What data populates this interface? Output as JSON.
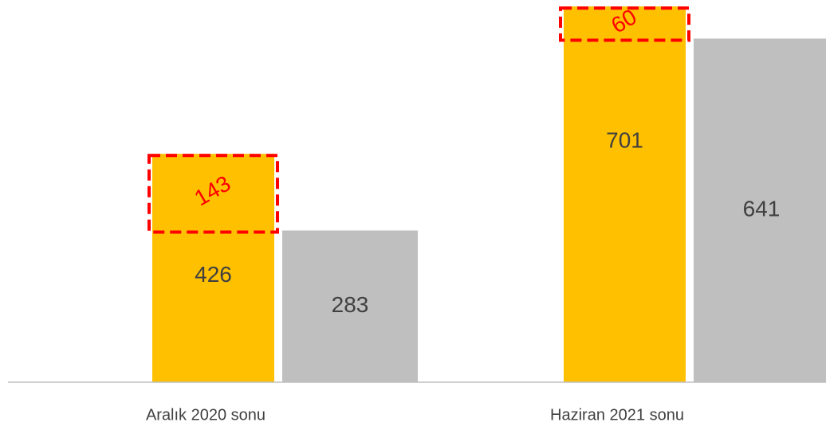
{
  "chart_data": {
    "type": "bar",
    "categories": [
      "Aralık 2020 sonu",
      "Haziran 2021 sonu"
    ],
    "series": [
      {
        "color": "#ffc000",
        "values": [
          426,
          701
        ]
      },
      {
        "color": "#bfbfbf",
        "values": [
          283,
          641
        ]
      }
    ],
    "increase": {
      "color": "#ff0000",
      "values": [
        143,
        60
      ]
    },
    "ylim": [
      0,
      713
    ]
  }
}
